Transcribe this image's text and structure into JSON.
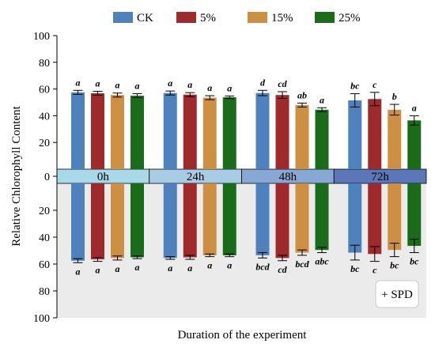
{
  "chart_data": {
    "type": "bar",
    "ylabel": "Relative Chlorophyll Content",
    "xlabel": "Duration of the experiment",
    "ylim_top": [
      0,
      100
    ],
    "ylim_bottom": [
      0,
      100
    ],
    "y_ticks": [
      "100",
      "80",
      "60",
      "40",
      "20",
      "0",
      "20",
      "40",
      "60",
      "80",
      "100"
    ],
    "categories": [
      "0h",
      "24h",
      "48h",
      "72h"
    ],
    "band_colors": [
      "#a9d8e8",
      "#a8cce4",
      "#88a8d4",
      "#5a78b8"
    ],
    "series": [
      {
        "name": "CK",
        "color": "#4f81bd"
      },
      {
        "name": "5%",
        "color": "#9e2a2b"
      },
      {
        "name": "15%",
        "color": "#cd8f44"
      },
      {
        "name": "25%",
        "color": "#1a6b1a"
      }
    ],
    "top": {
      "values": [
        [
          57.5,
          56.8,
          55.5,
          55.0
        ],
        [
          57.0,
          55.8,
          53.5,
          53.8
        ],
        [
          57.0,
          55.5,
          48.0,
          44.5
        ],
        [
          51.5,
          52.5,
          44.5,
          36.5
        ]
      ],
      "errors": [
        [
          1.5,
          1.5,
          1.5,
          1.5
        ],
        [
          1.5,
          1.5,
          1.5,
          1.0
        ],
        [
          2.0,
          2.5,
          1.5,
          1.5
        ],
        [
          5.0,
          5.0,
          4.0,
          3.5
        ]
      ],
      "labels": [
        [
          "a",
          "a",
          "a",
          "a"
        ],
        [
          "a",
          "a",
          "a",
          "a"
        ],
        [
          "d",
          "cd",
          "ab",
          "a"
        ],
        [
          "bc",
          "c",
          "b",
          "a"
        ]
      ]
    },
    "bottom": {
      "values": [
        [
          57.5,
          56.5,
          55.5,
          55.0
        ],
        [
          55.5,
          55.0,
          53.5,
          53.5
        ],
        [
          53.5,
          55.5,
          51.5,
          49.5
        ],
        [
          51.5,
          52.5,
          49.5,
          46.5
        ]
      ],
      "errors": [
        [
          1.5,
          1.5,
          1.5,
          1.0
        ],
        [
          1.0,
          1.5,
          1.0,
          1.0
        ],
        [
          2.0,
          2.0,
          2.0,
          2.0
        ],
        [
          5.5,
          5.5,
          5.0,
          5.0
        ]
      ],
      "labels": [
        [
          "a",
          "a",
          "a",
          "a"
        ],
        [
          "a",
          "a",
          "a",
          "a"
        ],
        [
          "bcd",
          "cd",
          "bcd",
          "abc"
        ],
        [
          "bc",
          "c",
          "bc",
          "bc"
        ]
      ]
    },
    "annotation": "+ SPD",
    "grid": false,
    "legend_position": "top"
  }
}
